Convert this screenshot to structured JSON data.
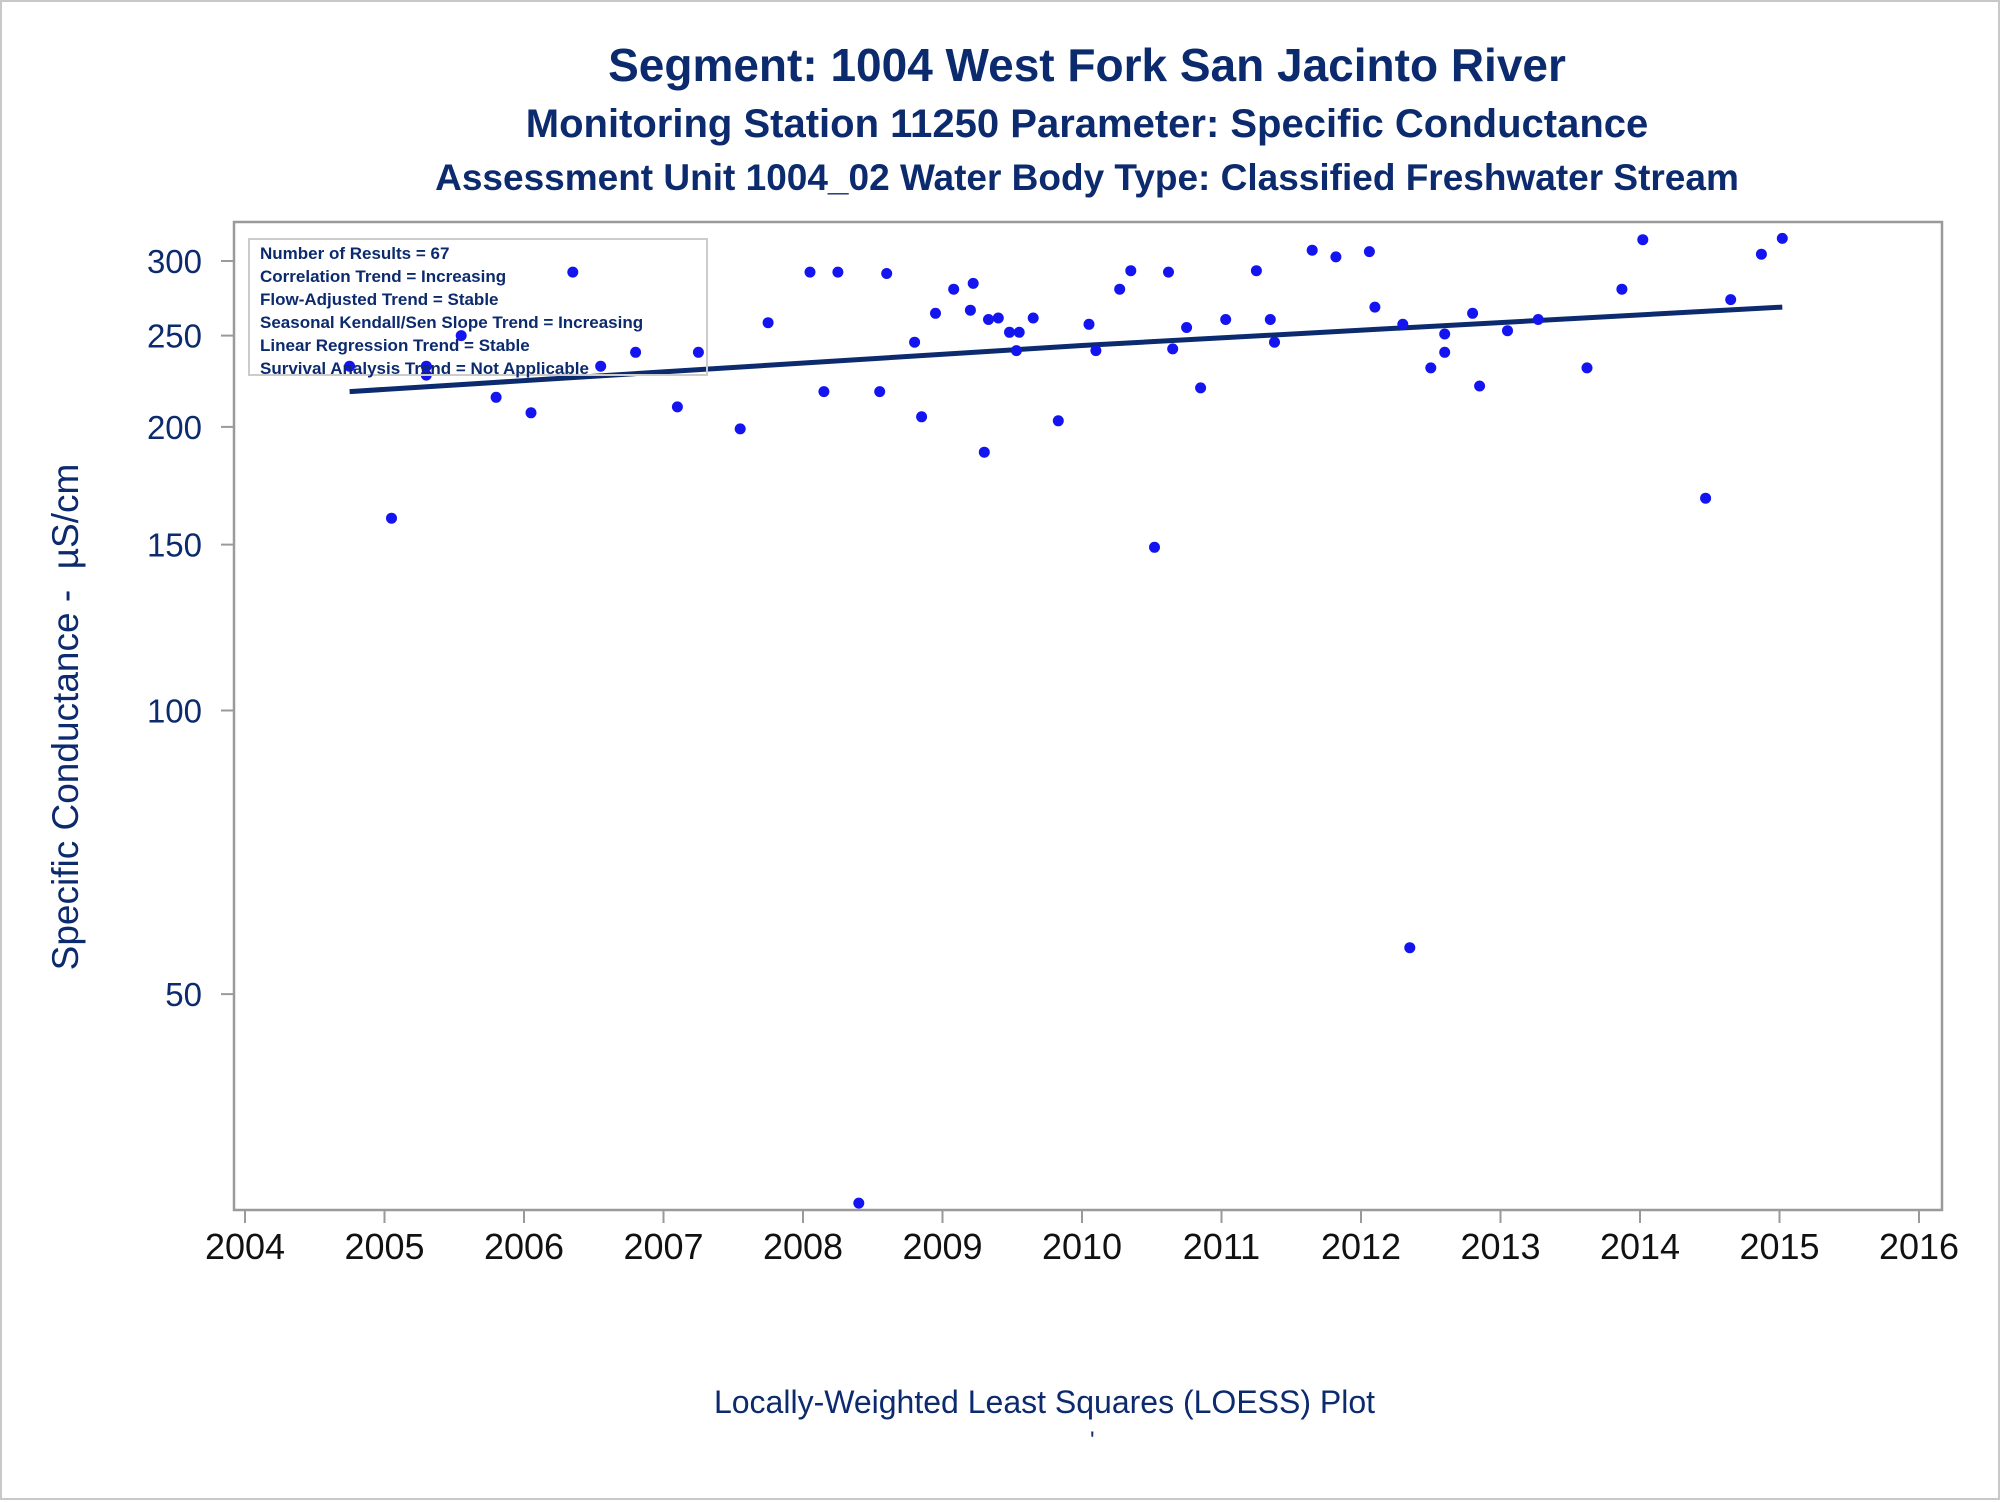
{
  "titles": {
    "line1": "Segment: 1004  West Fork San Jacinto River",
    "line2": "Monitoring Station 11250 Parameter: Specific Conductance",
    "line3": "Assessment Unit 1004_02   Water Body Type: Classified Freshwater Stream"
  },
  "stats": [
    "Number of Results = 67",
    "Correlation Trend = Increasing",
    "Flow-Adjusted Trend = Stable",
    "Seasonal Kendall/Sen Slope Trend = Increasing",
    "Linear Regression Trend = Stable",
    "Survival Analysis Trend = Not Applicable"
  ],
  "footnote": "Locally-Weighted Least Squares (LOESS) Plot",
  "tick_glyph": "'",
  "colors": {
    "text": "#0c2a6e",
    "points": "#1414f0",
    "line": "#0c2a6e",
    "frame": "#9a9a9a"
  },
  "chart_data": {
    "type": "scatter",
    "title": "Segment: 1004  West Fork San Jacinto River",
    "xlabel": "",
    "ylabel": "Specific Conductance -  µS/cm",
    "yscale": "log",
    "xlim": [
      2004,
      2016
    ],
    "x_ticks": [
      2004,
      2005,
      2006,
      2007,
      2008,
      2009,
      2010,
      2011,
      2012,
      2013,
      2014,
      2015,
      2016
    ],
    "ylim": [
      29.5,
      330
    ],
    "y_ticks": [
      50,
      100,
      150,
      200,
      250,
      300
    ],
    "grid": false,
    "series": [
      {
        "type": "scatter",
        "points": [
          [
            2004.75,
            232
          ],
          [
            2005.05,
            160
          ],
          [
            2005.3,
            232
          ],
          [
            2005.3,
            227
          ],
          [
            2005.55,
            250
          ],
          [
            2005.8,
            215
          ],
          [
            2006.05,
            207
          ],
          [
            2006.35,
            292
          ],
          [
            2006.55,
            232
          ],
          [
            2006.8,
            240
          ],
          [
            2007.1,
            210
          ],
          [
            2007.25,
            240
          ],
          [
            2007.55,
            199
          ],
          [
            2007.75,
            258
          ],
          [
            2008.05,
            292
          ],
          [
            2008.15,
            218
          ],
          [
            2008.25,
            292
          ],
          [
            2008.4,
            30
          ],
          [
            2008.55,
            218
          ],
          [
            2008.6,
            291
          ],
          [
            2008.8,
            246
          ],
          [
            2008.85,
            205
          ],
          [
            2008.95,
            264
          ],
          [
            2009.08,
            280
          ],
          [
            2009.2,
            266
          ],
          [
            2009.22,
            284
          ],
          [
            2009.3,
            188
          ],
          [
            2009.33,
            260
          ],
          [
            2009.4,
            261
          ],
          [
            2009.48,
            252
          ],
          [
            2009.53,
            241
          ],
          [
            2009.55,
            252
          ],
          [
            2009.65,
            261
          ],
          [
            2009.83,
            203
          ],
          [
            2010.05,
            257
          ],
          [
            2010.1,
            241
          ],
          [
            2010.27,
            280
          ],
          [
            2010.35,
            293
          ],
          [
            2010.52,
            149
          ],
          [
            2010.62,
            292
          ],
          [
            2010.65,
            242
          ],
          [
            2010.75,
            255
          ],
          [
            2010.85,
            220
          ],
          [
            2011.03,
            260
          ],
          [
            2011.25,
            293
          ],
          [
            2011.35,
            260
          ],
          [
            2011.38,
            246
          ],
          [
            2011.65,
            308
          ],
          [
            2011.82,
            303
          ],
          [
            2012.06,
            307
          ],
          [
            2012.1,
            268
          ],
          [
            2012.3,
            257
          ],
          [
            2012.35,
            56
          ],
          [
            2012.5,
            231
          ],
          [
            2012.6,
            251
          ],
          [
            2012.6,
            240
          ],
          [
            2012.8,
            264
          ],
          [
            2012.85,
            221
          ],
          [
            2013.05,
            253
          ],
          [
            2013.27,
            260
          ],
          [
            2013.62,
            231
          ],
          [
            2013.87,
            280
          ],
          [
            2014.02,
            316
          ],
          [
            2014.47,
            168
          ],
          [
            2014.65,
            273
          ],
          [
            2014.87,
            305
          ],
          [
            2015.02,
            317
          ]
        ]
      },
      {
        "type": "line",
        "points": [
          [
            2004.75,
            218
          ],
          [
            2010.0,
            244
          ],
          [
            2015.02,
            268
          ]
        ]
      }
    ]
  }
}
